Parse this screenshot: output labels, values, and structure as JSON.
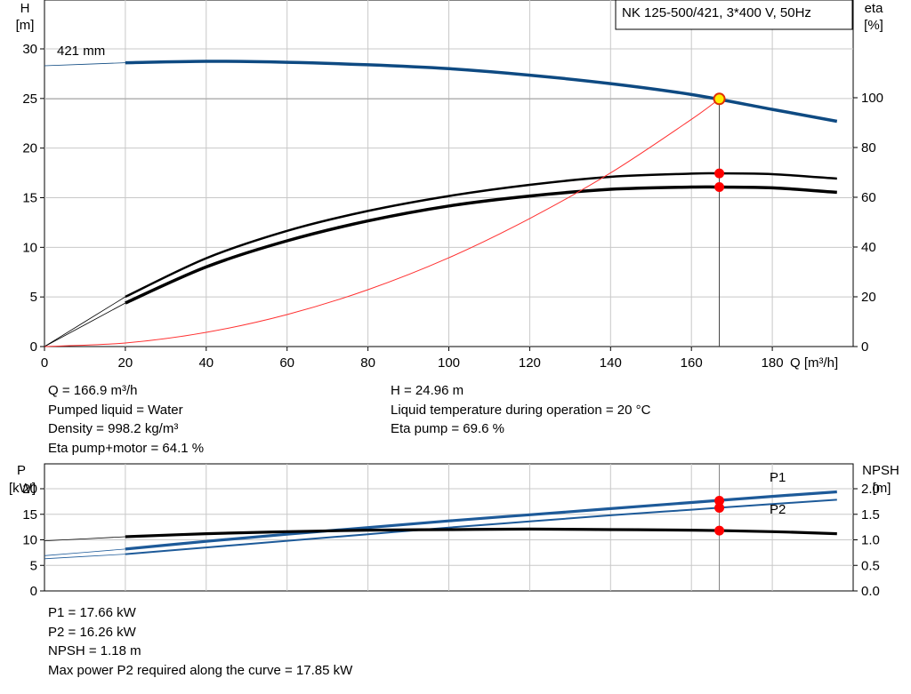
{
  "top_chart": {
    "title_box": "NK 125-500/421, 3*400 V, 50Hz",
    "y_left_label": "H",
    "y_left_unit": "[m]",
    "y_right_label": "eta",
    "y_right_unit": "[%]",
    "x_label": "Q [m³/h]",
    "impeller_label": "421 mm",
    "x_ticks": [
      "0",
      "20",
      "40",
      "60",
      "80",
      "100",
      "120",
      "140",
      "160",
      "180"
    ],
    "y_left_ticks": [
      "0",
      "5",
      "10",
      "15",
      "20",
      "25",
      "30"
    ],
    "y_right_ticks": [
      "0",
      "20",
      "40",
      "60",
      "80",
      "100"
    ],
    "info_left": [
      "Q = 166.9 m³/h",
      "Pumped liquid = Water",
      "Density = 998.2 kg/m³",
      "Eta pump+motor = 64.1 %"
    ],
    "info_right": [
      "H = 24.96 m",
      "Liquid temperature during operation = 20 °C",
      "Eta pump = 69.6 %"
    ]
  },
  "bottom_chart": {
    "y_left_label": "P",
    "y_left_unit": "[kW]",
    "y_right_label": "NPSH",
    "y_right_unit": "[m]",
    "y_left_ticks": [
      "0",
      "5",
      "10",
      "15",
      "20"
    ],
    "y_right_ticks": [
      "0.0",
      "0.5",
      "1.0",
      "1.5",
      "2.0"
    ],
    "series_labels": [
      "P1",
      "P2"
    ],
    "info": [
      "P1 = 17.66 kW",
      "P2 = 16.26 kW",
      "NPSH = 1.18 m",
      "Max power P2 required along the curve = 17.85 kW"
    ]
  },
  "colors": {
    "head": "#0e4a82",
    "eta": "#000000",
    "system": "#ff3030",
    "power": "#1d5a99",
    "npsh": "#000000",
    "marker": "#ff0000",
    "op_marker_fill": "#ffee00"
  },
  "chart_data": [
    {
      "type": "line",
      "xlabel": "Q [m³/h]",
      "ylabel": "H [m]",
      "xlim": [
        0,
        200
      ],
      "ylim": [
        0,
        30
      ],
      "y2lim": [
        0,
        120
      ],
      "operating_point": {
        "Q": 166.9,
        "H": 24.96,
        "eta_pump": 69.6,
        "eta_pump_motor": 64.1
      },
      "series": [
        {
          "name": "421 mm",
          "axis": "H",
          "x": [
            0,
            20,
            40,
            60,
            80,
            100,
            120,
            140,
            160,
            180,
            196
          ],
          "y": [
            28.3,
            28.6,
            28.75,
            28.65,
            28.4,
            28.0,
            27.35,
            26.5,
            25.4,
            23.9,
            22.7
          ]
        },
        {
          "name": "Eta pump",
          "axis": "eta",
          "x": [
            0,
            20,
            40,
            60,
            80,
            100,
            120,
            140,
            160,
            166.9,
            180,
            196
          ],
          "y": [
            0,
            20,
            35.5,
            46.5,
            54.5,
            60.5,
            65.0,
            68.2,
            69.5,
            69.6,
            69.3,
            67.5
          ]
        },
        {
          "name": "Eta pump+motor",
          "axis": "eta",
          "x": [
            0,
            20,
            40,
            60,
            80,
            100,
            120,
            140,
            160,
            166.9,
            180,
            196
          ],
          "y": [
            0,
            17.5,
            32,
            42.5,
            50.5,
            56.5,
            60.5,
            63.2,
            64.1,
            64.1,
            63.8,
            62
          ]
        },
        {
          "name": "System curve",
          "axis": "H",
          "x": [
            0,
            20,
            40,
            60,
            80,
            100,
            120,
            140,
            160,
            166.9
          ],
          "y": [
            0,
            0.36,
            1.43,
            3.22,
            5.73,
            8.95,
            12.9,
            17.5,
            22.9,
            24.96
          ]
        }
      ]
    },
    {
      "type": "line",
      "xlabel": "Q [m³/h]",
      "ylabel": "P [kW]",
      "xlim": [
        0,
        200
      ],
      "ylim": [
        0,
        20
      ],
      "y2lim": [
        0,
        2.0
      ],
      "operating_point": {
        "P1": 17.66,
        "P2": 16.26,
        "NPSH": 1.18
      },
      "series": [
        {
          "name": "P1",
          "axis": "P",
          "x": [
            0,
            20,
            40,
            60,
            80,
            100,
            120,
            140,
            160,
            180,
            196
          ],
          "y": [
            6.9,
            8.2,
            9.7,
            11.1,
            12.4,
            13.7,
            14.9,
            16.1,
            17.3,
            18.5,
            19.4
          ]
        },
        {
          "name": "P2",
          "axis": "P",
          "x": [
            0,
            20,
            40,
            60,
            80,
            100,
            120,
            140,
            160,
            180,
            196
          ],
          "y": [
            6.3,
            7.2,
            8.5,
            9.8,
            11.1,
            12.4,
            13.6,
            14.8,
            15.9,
            17.0,
            17.85
          ]
        },
        {
          "name": "NPSH",
          "axis": "NPSH",
          "x": [
            0,
            20,
            40,
            60,
            80,
            100,
            120,
            140,
            160,
            180,
            196
          ],
          "y": [
            0.98,
            1.06,
            1.12,
            1.16,
            1.19,
            1.2,
            1.21,
            1.2,
            1.19,
            1.16,
            1.12
          ]
        }
      ]
    }
  ]
}
